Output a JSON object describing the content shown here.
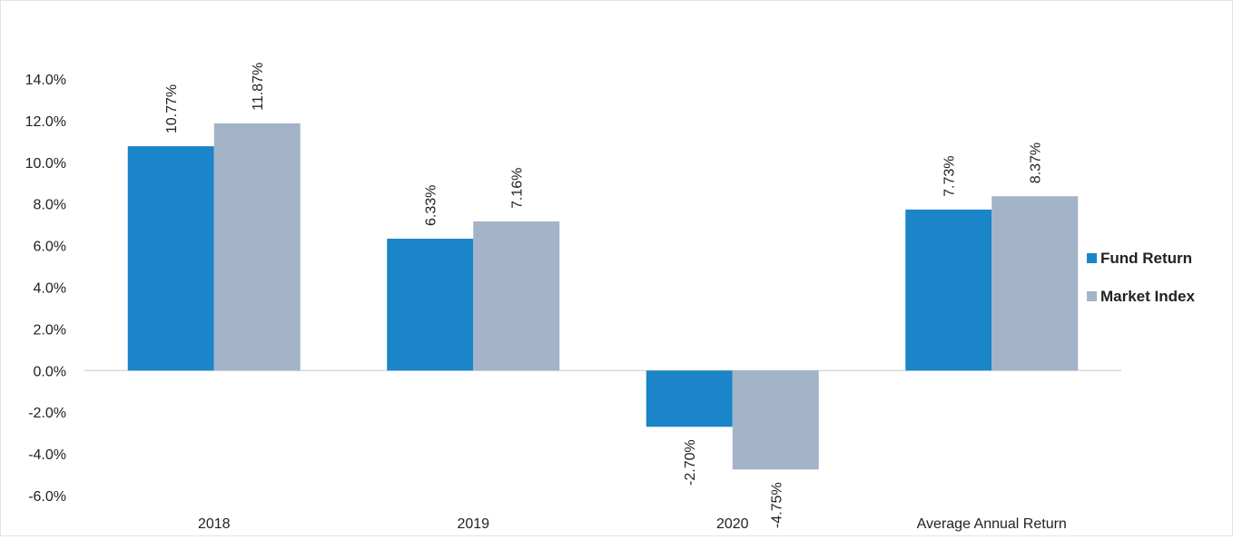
{
  "chart_data": {
    "type": "bar",
    "title": "",
    "xlabel": "",
    "ylabel": "",
    "categories": [
      "2018",
      "2019",
      "2020",
      "Average Annual Return"
    ],
    "series": [
      {
        "name": "Fund Return",
        "values": [
          10.77,
          6.33,
          -2.7,
          7.73
        ],
        "labels": [
          "10.77%",
          "6.33%",
          "-2.70%",
          "7.73%"
        ],
        "color": "#1a85c8"
      },
      {
        "name": "Market Index",
        "values": [
          11.87,
          7.16,
          -4.75,
          8.37
        ],
        "labels": [
          "11.87%",
          "7.16%",
          "-4.75%",
          "8.37%"
        ],
        "color": "#a3b4c9"
      }
    ],
    "ylim": [
      -6,
      14
    ],
    "yticks": [
      -6,
      -4,
      -2,
      0,
      2,
      4,
      6,
      8,
      10,
      12,
      14
    ],
    "ytick_labels": [
      "-6.0%",
      "-4.0%",
      "-2.0%",
      "0.0%",
      "2.0%",
      "4.0%",
      "6.0%",
      "8.0%",
      "10.0%",
      "12.0%",
      "14.0%"
    ],
    "grid": false,
    "legend_position": "right"
  }
}
